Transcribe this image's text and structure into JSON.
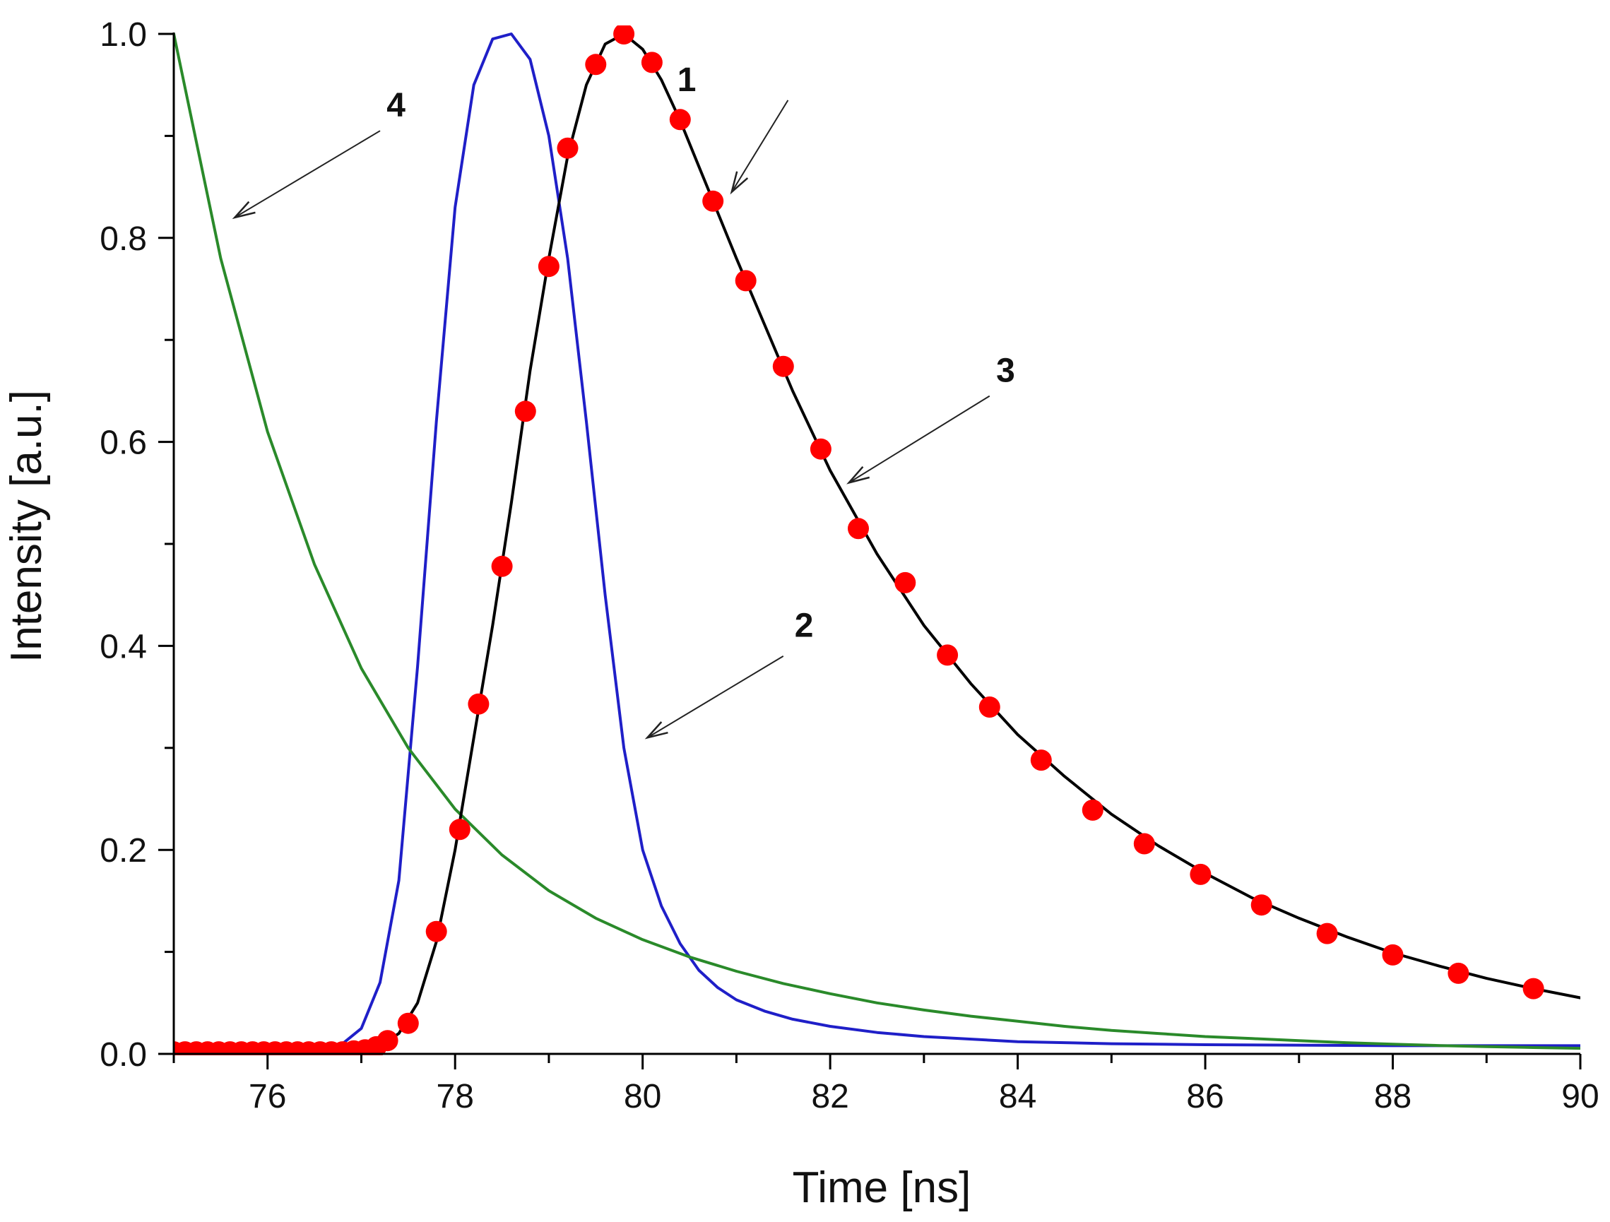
{
  "chart_data": {
    "type": "line",
    "title": "",
    "xlabel": "Time [ns]",
    "ylabel": "Intensity [a.u.]",
    "xlim": [
      75,
      90
    ],
    "ylim": [
      0,
      1
    ],
    "x_ticks": [
      "76",
      "78",
      "80",
      "82",
      "84",
      "86",
      "88",
      "90"
    ],
    "y_ticks": [
      "0.0",
      "0.2",
      "0.4",
      "0.6",
      "0.8",
      "1.0"
    ],
    "grid": false,
    "series": [
      {
        "id": "1",
        "name": "1",
        "style": "markers",
        "color": "#ff0000",
        "x": [
          75.0,
          75.12,
          75.24,
          75.36,
          75.48,
          75.6,
          75.72,
          75.84,
          75.96,
          76.08,
          76.2,
          76.32,
          76.44,
          76.56,
          76.68,
          76.8,
          76.92,
          77.04,
          77.16,
          77.28,
          77.5,
          77.8,
          78.05,
          78.25,
          78.5,
          78.75,
          79.0,
          79.2,
          79.5,
          79.8,
          80.1,
          80.4,
          80.75,
          81.1,
          81.5,
          81.9,
          82.3,
          82.8,
          83.25,
          83.7,
          84.25,
          84.8,
          85.35,
          85.95,
          86.6,
          87.3,
          88.0,
          88.7,
          89.5
        ],
        "y": [
          0.002,
          0.002,
          0.002,
          0.002,
          0.002,
          0.002,
          0.002,
          0.002,
          0.002,
          0.002,
          0.002,
          0.002,
          0.002,
          0.002,
          0.002,
          0.002,
          0.003,
          0.004,
          0.007,
          0.013,
          0.03,
          0.12,
          0.22,
          0.343,
          0.478,
          0.63,
          0.772,
          0.888,
          0.97,
          1.0,
          0.972,
          0.916,
          0.836,
          0.758,
          0.674,
          0.593,
          0.515,
          0.462,
          0.391,
          0.34,
          0.288,
          0.239,
          0.206,
          0.176,
          0.146,
          0.118,
          0.097,
          0.079,
          0.064
        ]
      },
      {
        "id": "2",
        "name": "2",
        "style": "line",
        "color": "#1f1fc8",
        "x": [
          75.0,
          76.0,
          76.5,
          76.7,
          76.8,
          77.0,
          77.2,
          77.4,
          77.6,
          77.8,
          78.0,
          78.2,
          78.4,
          78.6,
          78.8,
          79.0,
          79.2,
          79.4,
          79.6,
          79.8,
          80.0,
          80.2,
          80.4,
          80.6,
          80.8,
          81.0,
          81.3,
          81.6,
          82.0,
          82.5,
          83.0,
          84.0,
          85.0,
          86.0,
          88.0,
          90.0
        ],
        "y": [
          0.008,
          0.008,
          0.008,
          0.009,
          0.01,
          0.025,
          0.07,
          0.17,
          0.38,
          0.62,
          0.83,
          0.95,
          0.995,
          1.0,
          0.975,
          0.9,
          0.78,
          0.62,
          0.45,
          0.3,
          0.2,
          0.145,
          0.108,
          0.082,
          0.065,
          0.053,
          0.042,
          0.034,
          0.027,
          0.021,
          0.017,
          0.012,
          0.01,
          0.009,
          0.008,
          0.008
        ]
      },
      {
        "id": "3",
        "name": "3",
        "style": "line",
        "color": "#000000",
        "x": [
          75.0,
          76.0,
          76.8,
          77.0,
          77.2,
          77.4,
          77.6,
          77.8,
          78.0,
          78.2,
          78.4,
          78.6,
          78.8,
          79.0,
          79.2,
          79.4,
          79.6,
          79.8,
          80.0,
          80.2,
          80.4,
          80.6,
          80.8,
          81.0,
          81.3,
          81.6,
          82.0,
          82.5,
          83.0,
          83.5,
          84.0,
          84.5,
          85.0,
          85.5,
          86.0,
          86.5,
          87.0,
          87.5,
          88.0,
          88.5,
          89.0,
          89.5,
          90.0
        ],
        "y": [
          0.002,
          0.002,
          0.002,
          0.004,
          0.008,
          0.02,
          0.05,
          0.11,
          0.2,
          0.31,
          0.42,
          0.54,
          0.67,
          0.78,
          0.88,
          0.95,
          0.99,
          1.0,
          0.985,
          0.955,
          0.915,
          0.87,
          0.825,
          0.78,
          0.715,
          0.65,
          0.572,
          0.49,
          0.42,
          0.363,
          0.313,
          0.272,
          0.235,
          0.204,
          0.177,
          0.153,
          0.133,
          0.115,
          0.099,
          0.086,
          0.074,
          0.064,
          0.055
        ]
      },
      {
        "id": "4",
        "name": "4",
        "style": "line",
        "color": "#2a8a2a",
        "x": [
          75.0,
          75.5,
          76.0,
          76.5,
          77.0,
          77.5,
          78.0,
          78.5,
          79.0,
          79.5,
          80.0,
          80.5,
          81.0,
          81.5,
          82.0,
          82.5,
          83.0,
          83.5,
          84.0,
          84.5,
          85.0,
          85.5,
          86.0,
          86.5,
          87.0,
          87.5,
          88.0,
          88.5,
          89.0,
          89.5,
          90.0
        ],
        "y": [
          1.0,
          0.78,
          0.61,
          0.48,
          0.378,
          0.3,
          0.24,
          0.195,
          0.16,
          0.133,
          0.112,
          0.095,
          0.081,
          0.069,
          0.059,
          0.05,
          0.043,
          0.037,
          0.032,
          0.027,
          0.023,
          0.02,
          0.017,
          0.015,
          0.013,
          0.011,
          0.0095,
          0.0082,
          0.0071,
          0.0062,
          0.0055
        ]
      }
    ],
    "annotations": [
      {
        "label": "1",
        "text_x": 80.35,
        "text_y": 0.955,
        "arrow_from_x": 81.55,
        "arrow_from_y": 0.935,
        "arrow_to_x": 80.95,
        "arrow_to_y": 0.845
      },
      {
        "label": "2",
        "text_x": 81.6,
        "text_y": 0.42,
        "arrow_from_x": 81.5,
        "arrow_from_y": 0.39,
        "arrow_to_x": 80.05,
        "arrow_to_y": 0.31
      },
      {
        "label": "3",
        "text_x": 83.75,
        "text_y": 0.67,
        "arrow_from_x": 83.7,
        "arrow_from_y": 0.645,
        "arrow_to_x": 82.2,
        "arrow_to_y": 0.56
      },
      {
        "label": "4",
        "text_x": 77.25,
        "text_y": 0.93,
        "arrow_from_x": 77.2,
        "arrow_from_y": 0.905,
        "arrow_to_x": 75.65,
        "arrow_to_y": 0.82
      }
    ]
  }
}
